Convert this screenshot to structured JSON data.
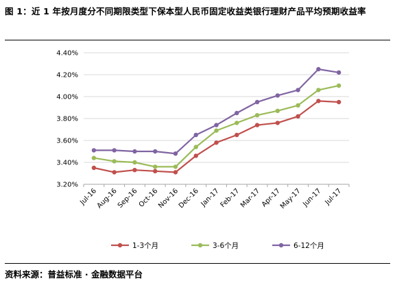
{
  "figure": {
    "title": "图 1：近 1 年按月度分不同期限类型下保本型人民币固定收益类银行理财产品平均预期收益率",
    "source": "资料来源：普益标准 · 金融数据平台"
  },
  "chart_data": {
    "type": "line",
    "title": "图 1：近 1 年按月度分不同期限类型下保本型人民币固定收益类银行理财产品平均预期收益率",
    "xlabel": "",
    "ylabel": "",
    "categories": [
      "Jul-16",
      "Aug-16",
      "Sep-16",
      "Oct-16",
      "Nov-16",
      "Dec-16",
      "Jan-17",
      "Feb-17",
      "Mar-17",
      "Apr-17",
      "May-17",
      "Jun-17",
      "Jul-17"
    ],
    "ylim": [
      3.2,
      4.4
    ],
    "yticks": [
      "3.20%",
      "3.40%",
      "3.60%",
      "3.80%",
      "4.00%",
      "4.20%",
      "4.40%"
    ],
    "ytick_values": [
      3.2,
      3.4,
      3.6,
      3.8,
      4.0,
      4.2,
      4.4
    ],
    "grid": true,
    "legend_position": "bottom",
    "series": [
      {
        "name": "1-3个月",
        "color": "#c0504d",
        "values": [
          3.35,
          3.31,
          3.33,
          3.32,
          3.31,
          3.46,
          3.58,
          3.65,
          3.74,
          3.76,
          3.82,
          3.96,
          3.95
        ]
      },
      {
        "name": "3-6个月",
        "color": "#9bbb59",
        "values": [
          3.44,
          3.41,
          3.4,
          3.36,
          3.36,
          3.54,
          3.69,
          3.76,
          3.83,
          3.87,
          3.92,
          4.06,
          4.1
        ]
      },
      {
        "name": "6-12个月",
        "color": "#8064a2",
        "values": [
          3.51,
          3.51,
          3.5,
          3.5,
          3.48,
          3.65,
          3.74,
          3.85,
          3.95,
          4.01,
          4.06,
          4.25,
          4.22
        ]
      }
    ]
  }
}
